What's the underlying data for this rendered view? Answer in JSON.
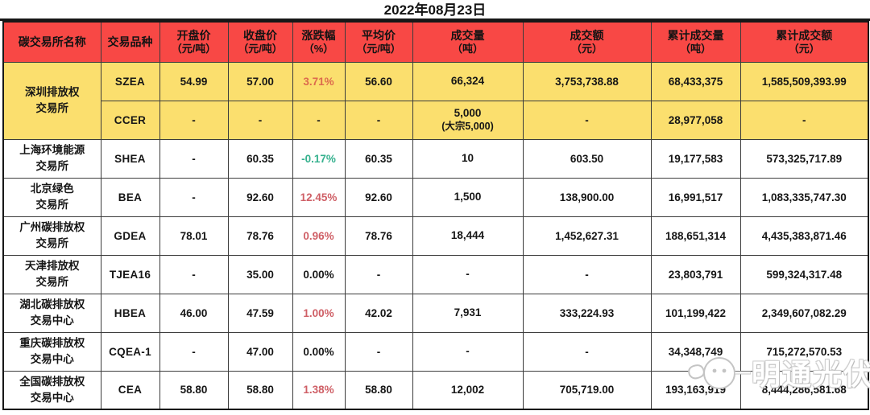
{
  "title": "2022年08月23日",
  "watermark": {
    "text": "明通光伏",
    "icon": "chick-logo"
  },
  "colors": {
    "header_bg": "#f84845",
    "highlight_row_bg": "#fbdf6e",
    "up": "#cf5f66",
    "up_on_yellow": "#dc6a4d",
    "down": "#35b18e",
    "flat": "#1a1a1a"
  },
  "table": {
    "columns": [
      {
        "id": "exchange",
        "label": "碳交易所名称",
        "unit": ""
      },
      {
        "id": "variety",
        "label": "交易品种",
        "unit": ""
      },
      {
        "id": "open",
        "label": "开盘价",
        "unit": "（元/吨）"
      },
      {
        "id": "close",
        "label": "收盘价",
        "unit": "（元/吨）"
      },
      {
        "id": "change",
        "label": "涨跌幅",
        "unit": "（%）"
      },
      {
        "id": "avg",
        "label": "平均价",
        "unit": "（元/吨）"
      },
      {
        "id": "volume",
        "label": "成交量",
        "unit": "（吨）"
      },
      {
        "id": "turnover",
        "label": "成交额",
        "unit": "（元）"
      },
      {
        "id": "cum_volume",
        "label": "累计成交量",
        "unit": "（吨）"
      },
      {
        "id": "cum_turnover",
        "label": "累计成交额",
        "unit": "（元）"
      }
    ],
    "rows": [
      {
        "exchange": "深圳排放权\n交易所",
        "rowspan": 2,
        "variety": "SZEA",
        "open": "54.99",
        "close": "57.00",
        "change": "3.71%",
        "trend": "up",
        "avg": "56.60",
        "volume": "66,324",
        "volume_note": "",
        "turnover": "3,753,738.88",
        "cum_volume": "68,433,375",
        "cum_turnover": "1,585,509,393.99",
        "highlight": true
      },
      {
        "exchange": "",
        "rowspan": 0,
        "variety": "CCER",
        "open": "-",
        "close": "-",
        "change": "-",
        "trend": "none",
        "avg": "-",
        "volume": "5,000",
        "volume_note": "(大宗5,000)",
        "turnover": "-",
        "cum_volume": "28,977,058",
        "cum_turnover": "-",
        "highlight": true
      },
      {
        "exchange": "上海环境能源\n交易所",
        "rowspan": 1,
        "variety": "SHEA",
        "open": "-",
        "close": "60.35",
        "change": "-0.17%",
        "trend": "down",
        "avg": "60.35",
        "volume": "10",
        "volume_note": "",
        "turnover": "603.50",
        "cum_volume": "19,177,583",
        "cum_turnover": "573,325,717.89",
        "highlight": false
      },
      {
        "exchange": "北京绿色\n交易所",
        "rowspan": 1,
        "variety": "BEA",
        "open": "-",
        "close": "92.60",
        "change": "12.45%",
        "trend": "up",
        "avg": "92.60",
        "volume": "1,500",
        "volume_note": "",
        "turnover": "138,900.00",
        "cum_volume": "16,991,517",
        "cum_turnover": "1,083,335,747.30",
        "highlight": false
      },
      {
        "exchange": "广州碳排放权\n交易所",
        "rowspan": 1,
        "variety": "GDEA",
        "open": "78.01",
        "close": "78.76",
        "change": "0.96%",
        "trend": "up",
        "avg": "78.76",
        "volume": "18,444",
        "volume_note": "",
        "turnover": "1,452,627.31",
        "cum_volume": "188,651,314",
        "cum_turnover": "4,435,383,871.46",
        "highlight": false
      },
      {
        "exchange": "天津排放权\n交易所",
        "rowspan": 1,
        "variety": "TJEA16",
        "open": "-",
        "close": "35.00",
        "change": "0.00%",
        "trend": "flat",
        "avg": "-",
        "volume": "-",
        "volume_note": "",
        "turnover": "-",
        "cum_volume": "23,803,791",
        "cum_turnover": "599,324,317.48",
        "highlight": false
      },
      {
        "exchange": "湖北碳排放权\n交易中心",
        "rowspan": 1,
        "variety": "HBEA",
        "open": "46.00",
        "close": "47.59",
        "change": "1.00%",
        "trend": "up",
        "avg": "42.02",
        "volume": "7,931",
        "volume_note": "",
        "turnover": "333,224.93",
        "cum_volume": "101,199,422",
        "cum_turnover": "2,349,607,082.29",
        "highlight": false
      },
      {
        "exchange": "重庆碳排放权\n交易中心",
        "rowspan": 1,
        "variety": "CQEA-1",
        "open": "-",
        "close": "47.00",
        "change": "0.00%",
        "trend": "flat",
        "avg": "-",
        "volume": "-",
        "volume_note": "",
        "turnover": "-",
        "cum_volume": "34,348,749",
        "cum_turnover": "715,272,570.53",
        "highlight": false
      },
      {
        "exchange": "全国碳排放权\n交易中心",
        "rowspan": 1,
        "variety": "CEA",
        "open": "58.80",
        "close": "58.80",
        "change": "1.38%",
        "trend": "up",
        "avg": "58.80",
        "volume": "12,002",
        "volume_note": "",
        "turnover": "705,719.00",
        "cum_volume": "193,163,919",
        "cum_turnover": "8,444,286,581.68",
        "highlight": false
      }
    ]
  },
  "chart_data": {
    "type": "table",
    "title": "2022年08月23日",
    "columns": [
      "碳交易所名称",
      "交易品种",
      "开盘价(元/吨)",
      "收盘价(元/吨)",
      "涨跌幅(%)",
      "平均价(元/吨)",
      "成交量(吨)",
      "成交额(元)",
      "累计成交量(吨)",
      "累计成交额(元)"
    ],
    "rows": [
      [
        "深圳排放权交易所",
        "SZEA",
        54.99,
        57.0,
        3.71,
        56.6,
        66324,
        3753738.88,
        68433375,
        1585509393.99
      ],
      [
        "深圳排放权交易所",
        "CCER",
        null,
        null,
        null,
        null,
        "5,000 (大宗5,000)",
        null,
        28977058,
        null
      ],
      [
        "上海环境能源交易所",
        "SHEA",
        null,
        60.35,
        -0.17,
        60.35,
        10,
        603.5,
        19177583,
        573325717.89
      ],
      [
        "北京绿色交易所",
        "BEA",
        null,
        92.6,
        12.45,
        92.6,
        1500,
        138900.0,
        16991517,
        1083335747.3
      ],
      [
        "广州碳排放权交易所",
        "GDEA",
        78.01,
        78.76,
        0.96,
        78.76,
        18444,
        1452627.31,
        188651314,
        4435383871.46
      ],
      [
        "天津排放权交易所",
        "TJEA16",
        null,
        35.0,
        0.0,
        null,
        null,
        null,
        23803791,
        599324317.48
      ],
      [
        "湖北碳排放权交易中心",
        "HBEA",
        46.0,
        47.59,
        1.0,
        42.02,
        7931,
        333224.93,
        101199422,
        2349607082.29
      ],
      [
        "重庆碳排放权交易中心",
        "CQEA-1",
        null,
        47.0,
        0.0,
        null,
        null,
        null,
        34348749,
        715272570.53
      ],
      [
        "全国碳排放权交易中心",
        "CEA",
        58.8,
        58.8,
        1.38,
        58.8,
        12002,
        705719.0,
        193163919,
        8444286581.68
      ]
    ]
  }
}
